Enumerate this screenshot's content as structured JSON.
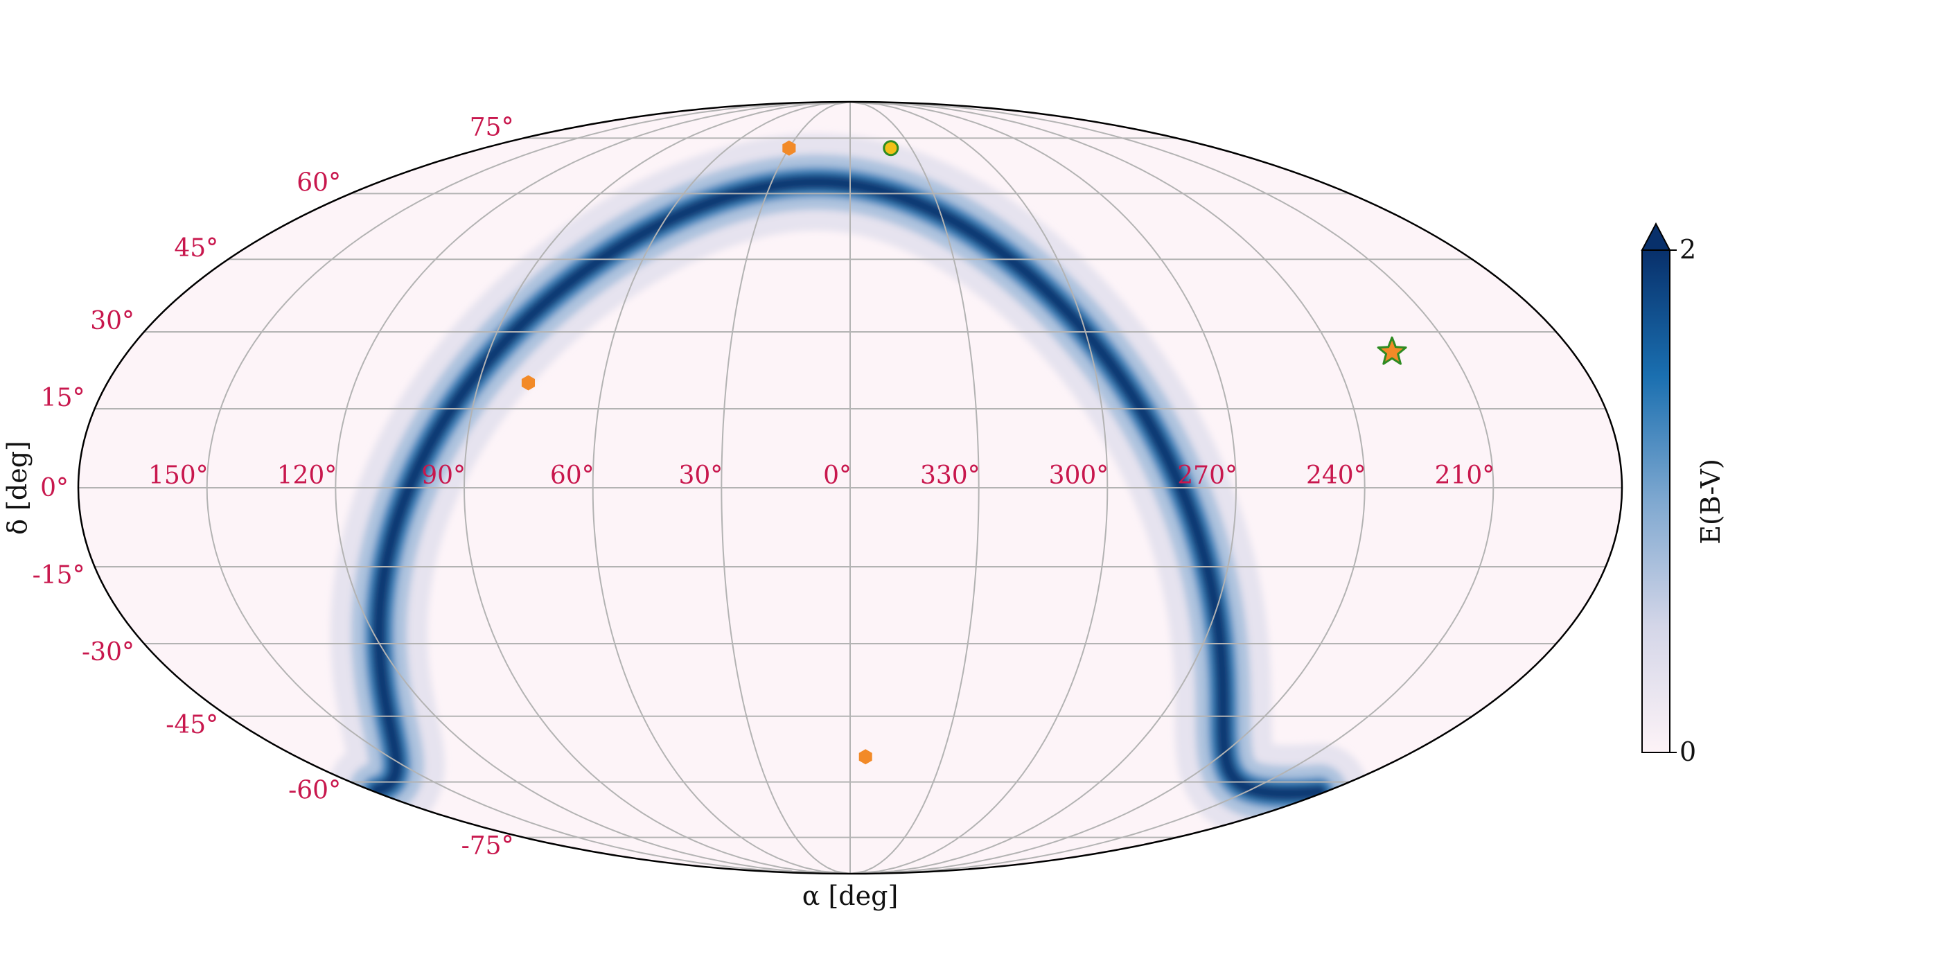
{
  "chart_data": {
    "type": "scatter",
    "projection": "mollweide",
    "xlabel": "α [deg]",
    "ylabel": "δ [deg]",
    "ra_ticks": [
      150,
      120,
      90,
      60,
      30,
      0,
      330,
      300,
      270,
      240,
      210
    ],
    "ra_tick_labels": [
      "150°",
      "120°",
      "90°",
      "60°",
      "30°",
      "0°",
      "330°",
      "300°",
      "270°",
      "240°",
      "210°"
    ],
    "dec_ticks": [
      75,
      60,
      45,
      30,
      15,
      0,
      -15,
      -30,
      -45,
      -60,
      -75
    ],
    "dec_tick_labels": [
      "75°",
      "60°",
      "45°",
      "30°",
      "15°",
      "0°",
      "-15°",
      "-30°",
      "-45°",
      "-60°",
      "-75°"
    ],
    "xlim": [
      -180,
      180
    ],
    "ylim": [
      -90,
      90
    ],
    "grid": true,
    "background_map": {
      "quantity": "E(B-V)",
      "description": "dust reddening along the Galactic plane"
    },
    "colorbar": {
      "label": "E(B-V)",
      "range": [
        0,
        2
      ],
      "tick_labels": [
        "0",
        "2"
      ],
      "extend": "max",
      "colors": [
        "#fdf3f7",
        "#d4d6e8",
        "#7fa8d0",
        "#1a6fb0",
        "#08306b"
      ]
    },
    "markers": [
      {
        "ra": 30,
        "dec": 72,
        "shape": "hexagon",
        "color": "#f28a28"
      },
      {
        "ra": 78,
        "dec": 20,
        "shape": "hexagon",
        "color": "#f28a28"
      },
      {
        "ra": -5,
        "dec": -54,
        "shape": "hexagon",
        "color": "#f28a28"
      },
      {
        "ra": -20,
        "dec": 72,
        "shape": "circle",
        "color": "#f2c018",
        "edge_color": "#2e8b22"
      },
      {
        "ra": -135,
        "dec": 26,
        "shape": "star",
        "color": "#f28a28",
        "edge_color": "#2e8b22"
      }
    ]
  }
}
